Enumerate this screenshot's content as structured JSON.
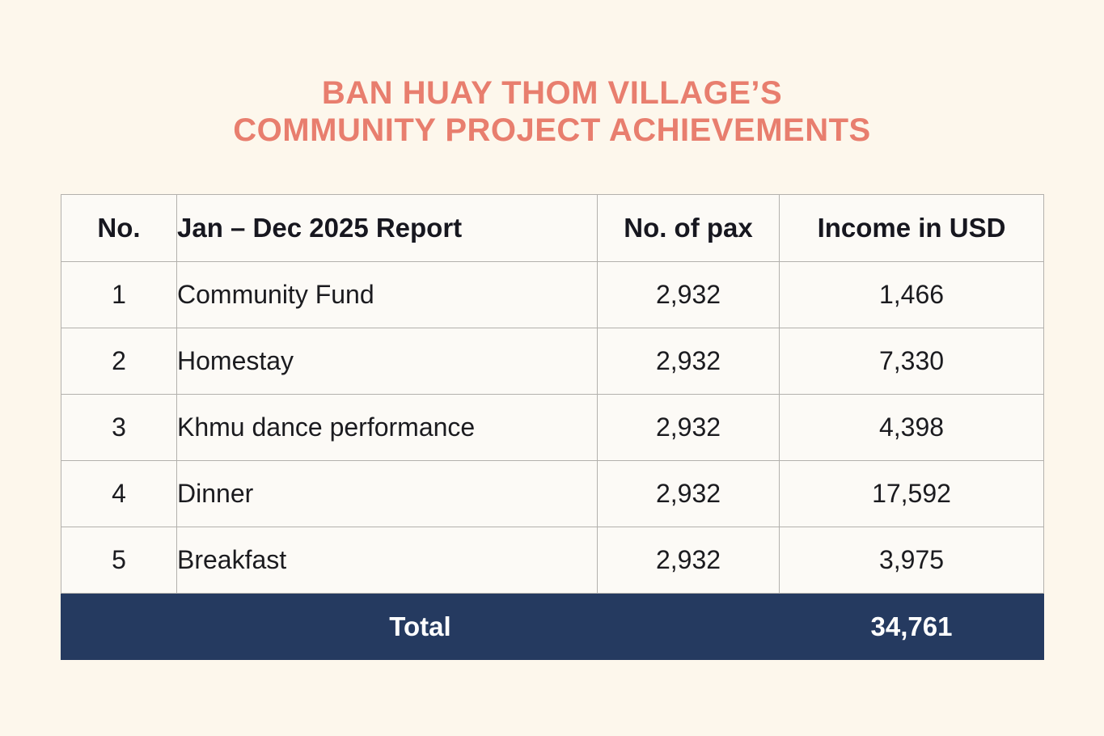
{
  "title": {
    "line1": "BAN HUAY THOM VILLAGE’S",
    "line2": "COMMUNITY PROJECT ACHIEVEMENTS",
    "color": "#e87e6e"
  },
  "table": {
    "headers": {
      "no": "No.",
      "item": "Jan – Dec 2025 Report",
      "pax": "No. of pax",
      "income": "Income in USD"
    },
    "rows": [
      {
        "no": "1",
        "item": "Community Fund",
        "pax": "2,932",
        "income": "1,466"
      },
      {
        "no": "2",
        "item": "Homestay",
        "pax": "2,932",
        "income": "7,330"
      },
      {
        "no": "3",
        "item": "Khmu dance performance",
        "pax": "2,932",
        "income": "4,398"
      },
      {
        "no": "4",
        "item": "Dinner",
        "pax": "2,932",
        "income": "17,592"
      },
      {
        "no": "5",
        "item": "Breakfast",
        "pax": "2,932",
        "income": "3,975"
      }
    ],
    "total": {
      "label": "Total",
      "value": "34,761"
    }
  },
  "colors": {
    "page_bg": "#fdf7ec",
    "cell_bg": "#fcfaf6",
    "border": "#b3b1ad",
    "total_bg": "#253a60",
    "total_text": "#ffffff",
    "title": "#e87e6e"
  }
}
